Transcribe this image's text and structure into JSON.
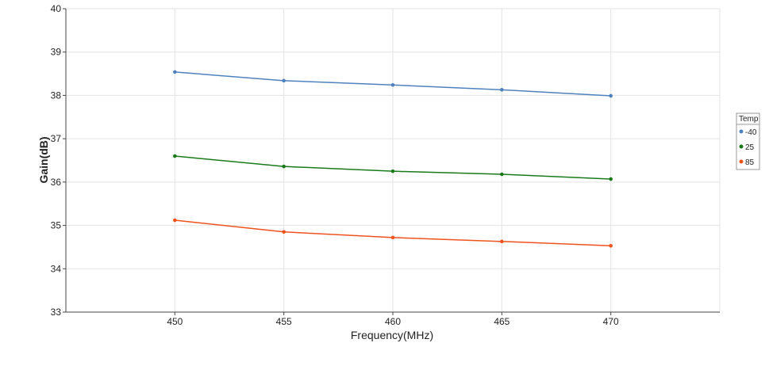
{
  "chart_data": {
    "type": "line",
    "title": "",
    "xlabel": "Frequency(MHz)",
    "ylabel": "Gain(dB)",
    "xlim": [
      445,
      475
    ],
    "ylim": [
      33,
      40
    ],
    "xticks": [
      450,
      455,
      460,
      465,
      470
    ],
    "yticks": [
      33,
      34,
      35,
      36,
      37,
      38,
      39,
      40
    ],
    "grid": true,
    "legend": {
      "title": "Temp",
      "placement": "right"
    },
    "x": [
      450,
      455,
      460,
      465,
      470
    ],
    "series": [
      {
        "name": "-40",
        "color": "#4f81bd",
        "values": [
          38.54,
          38.34,
          38.24,
          38.13,
          37.99
        ]
      },
      {
        "name": "25",
        "color": "#1a7a1a",
        "values": [
          36.6,
          36.36,
          36.25,
          36.18,
          36.07
        ]
      },
      {
        "name": "85",
        "color": "#f0521c",
        "values": [
          35.12,
          34.85,
          34.72,
          34.63,
          34.53
        ]
      }
    ]
  }
}
